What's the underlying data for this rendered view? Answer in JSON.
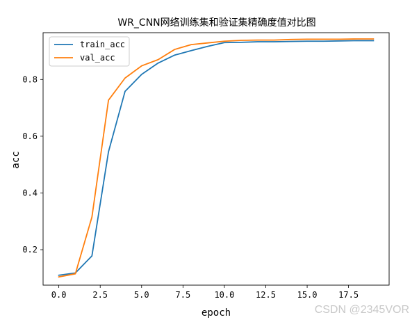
{
  "chart_data": {
    "type": "line",
    "title": "WR_CNN网络训练集和验证集精确度值对比图",
    "xlabel": "epoch",
    "ylabel": "acc",
    "xlim": [
      -0.95,
      19.95
    ],
    "ylim": [
      0.075,
      0.965
    ],
    "xticks": [
      0,
      2.5,
      5,
      7.5,
      10,
      12.5,
      15,
      17.5
    ],
    "xtick_labels": [
      "0.0",
      "2.5",
      "5.0",
      "7.5",
      "10.0",
      "12.5",
      "15.0",
      "17.5"
    ],
    "yticks": [
      0.2,
      0.4,
      0.6,
      0.8
    ],
    "ytick_labels": [
      "0.2",
      "0.4",
      "0.6",
      "0.8"
    ],
    "grid": false,
    "legend_position": "upper-left",
    "x": [
      0,
      1,
      2,
      3,
      4,
      5,
      6,
      7,
      8,
      9,
      10,
      11,
      12,
      13,
      14,
      15,
      16,
      17,
      18,
      19
    ],
    "series": [
      {
        "name": "train_acc",
        "color": "#1f77b4",
        "values": [
          0.11,
          0.118,
          0.178,
          0.545,
          0.758,
          0.818,
          0.858,
          0.886,
          0.902,
          0.917,
          0.93,
          0.931,
          0.933,
          0.933,
          0.934,
          0.935,
          0.935,
          0.936,
          0.937,
          0.937
        ]
      },
      {
        "name": "val_acc",
        "color": "#ff7f0e",
        "values": [
          0.104,
          0.115,
          0.315,
          0.727,
          0.805,
          0.848,
          0.87,
          0.906,
          0.923,
          0.929,
          0.935,
          0.938,
          0.939,
          0.939,
          0.941,
          0.942,
          0.942,
          0.942,
          0.943,
          0.943
        ]
      }
    ]
  },
  "watermark": "CSDN @2345VOR"
}
